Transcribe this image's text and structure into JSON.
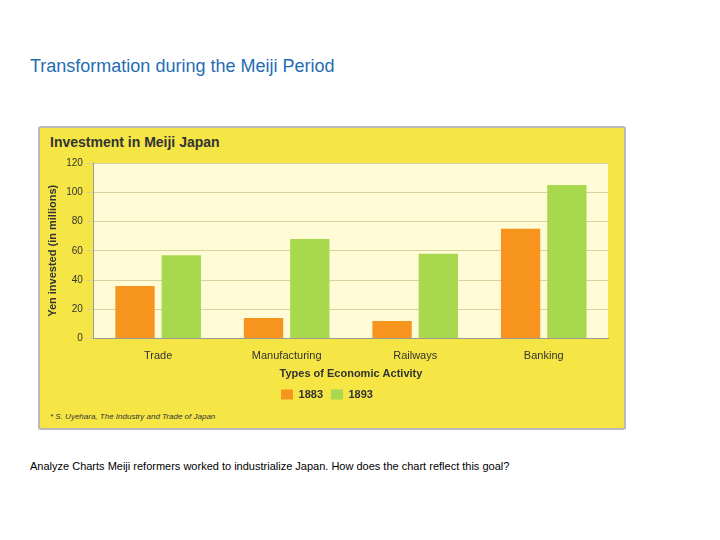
{
  "slide": {
    "title": "Transformation during the Meiji Period",
    "caption": "Analyze Charts Meiji reformers worked to industrialize Japan. How does the chart reflect this goal?"
  },
  "chart_data": {
    "type": "bar",
    "title": "Investment in Meiji Japan",
    "xlabel": "Types of Economic Activity",
    "ylabel": "Yen invested (in millions)",
    "source": "* S. Uyehara, The Industry and Trade of Japan",
    "categories": [
      "Trade",
      "Manufacturing",
      "Railways",
      "Banking"
    ],
    "series": [
      {
        "name": "1883",
        "color": "#f7941d",
        "values": [
          36,
          14,
          12,
          75
        ]
      },
      {
        "name": "1893",
        "color": "#a8d84e",
        "values": [
          57,
          68,
          58,
          105
        ]
      }
    ],
    "ylim": [
      0,
      120
    ],
    "yticks": [
      0,
      20,
      40,
      60,
      80,
      100,
      120
    ],
    "grid": true,
    "legend": "bottom"
  }
}
